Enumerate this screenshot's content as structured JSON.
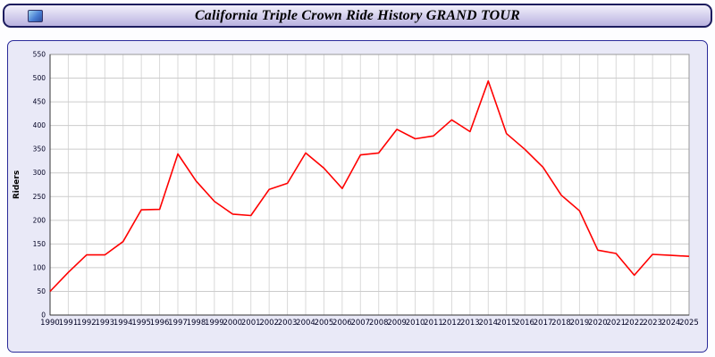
{
  "header": {
    "title": "California Triple Crown Ride History GRAND TOUR",
    "logo_icon": "logo-icon"
  },
  "chart_data": {
    "type": "line",
    "title": "California Triple Crown Ride History GRAND TOUR",
    "xlabel": "",
    "ylabel": "Riders",
    "ylim": [
      0,
      550
    ],
    "ytick_step": 50,
    "grid": true,
    "legend_position": "none",
    "line_color": "#ff0000",
    "categories": [
      1990,
      1991,
      1992,
      1993,
      1994,
      1995,
      1996,
      1997,
      1998,
      1999,
      2000,
      2001,
      2002,
      2003,
      2004,
      2005,
      2006,
      2007,
      2008,
      2009,
      2010,
      2011,
      2012,
      2013,
      2014,
      2015,
      2016,
      2017,
      2018,
      2019,
      2020,
      2021,
      2022,
      2023,
      2024,
      2025
    ],
    "values": [
      50,
      90,
      127,
      127,
      155,
      222,
      223,
      340,
      283,
      240,
      213,
      210,
      265,
      278,
      342,
      310,
      267,
      338,
      342,
      392,
      372,
      378,
      412,
      387,
      494,
      383,
      350,
      312,
      253,
      220,
      137,
      130,
      84,
      128,
      126,
      124
    ]
  }
}
